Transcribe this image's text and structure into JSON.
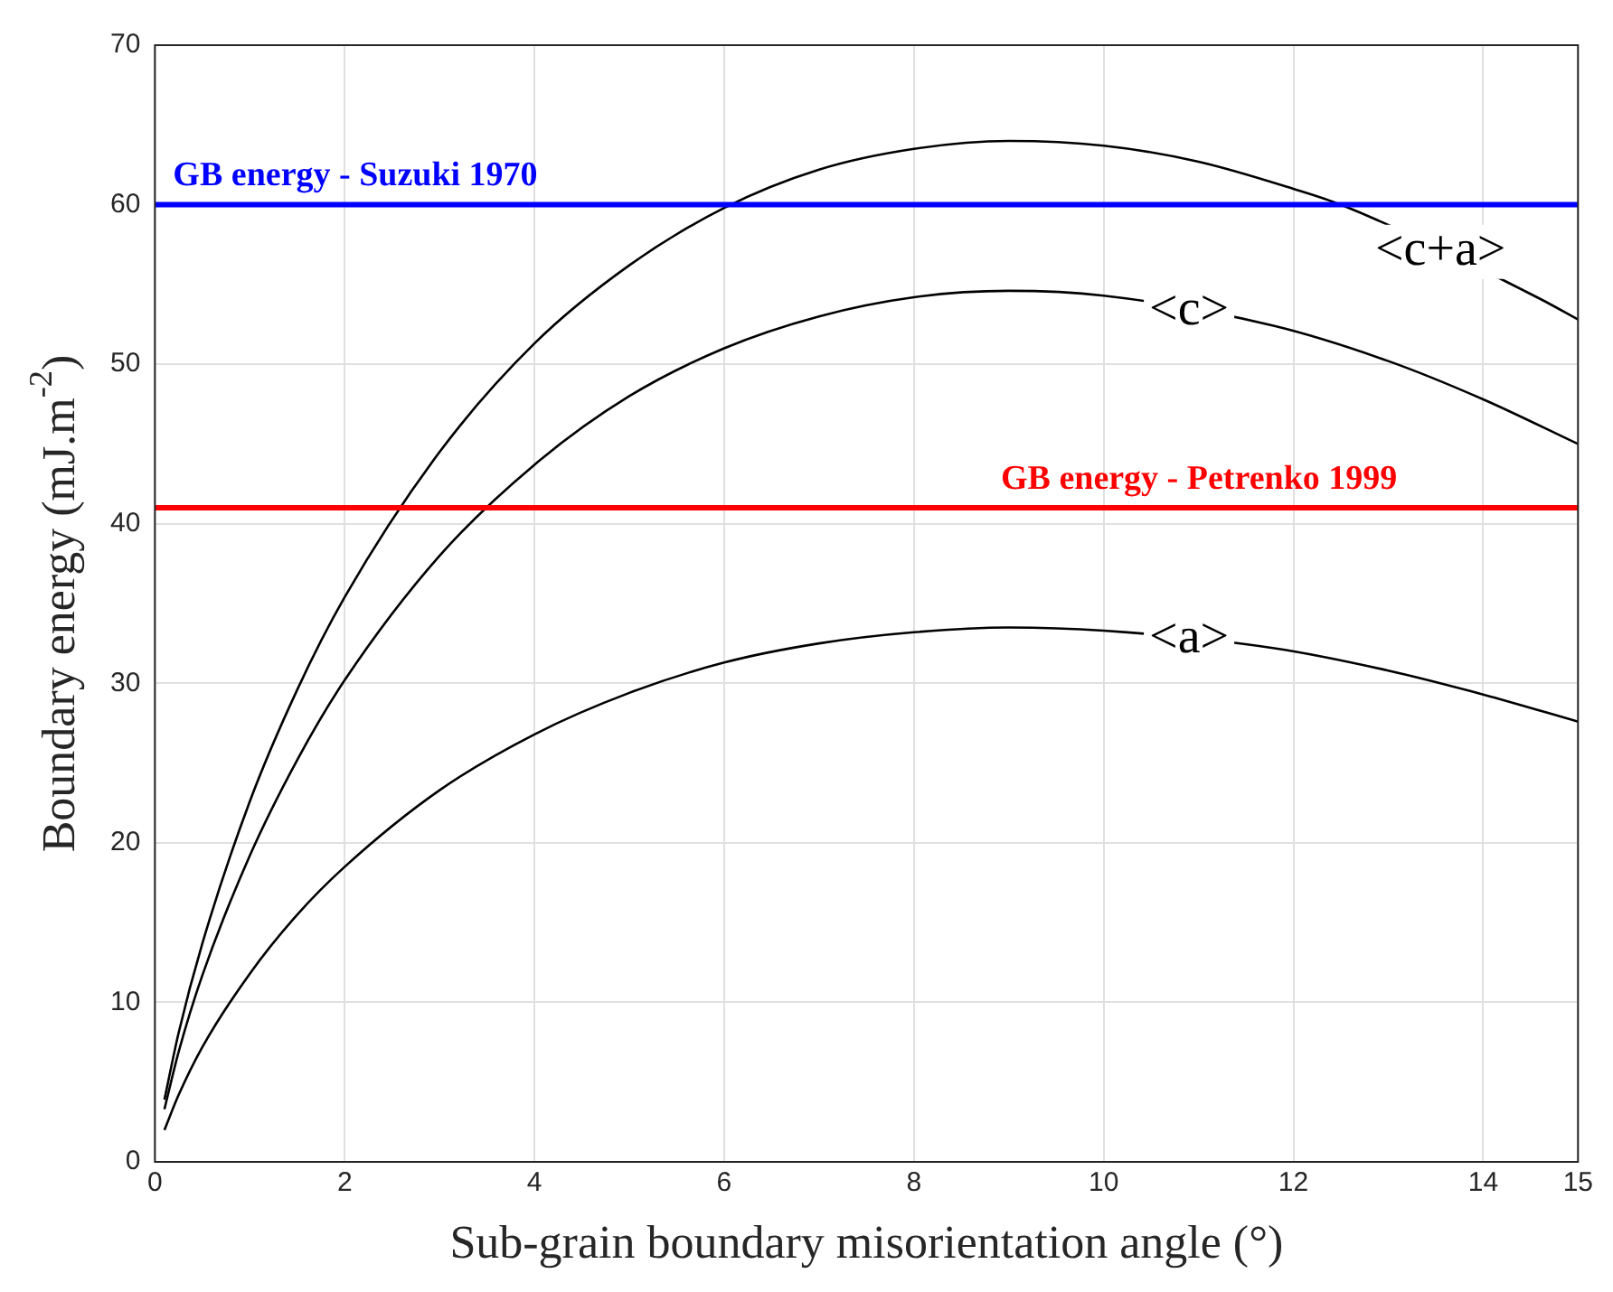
{
  "chart_data": {
    "type": "line",
    "xlabel": "Sub-grain boundary misorientation angle (°)",
    "ylabel": "Boundary energy (mJ.m$^{-2}$)",
    "series": [
      {
        "name": "<c+a>",
        "color": "#000000",
        "x": [
          0.1,
          0.25,
          0.5,
          1,
          1.5,
          2,
          3,
          4,
          5,
          6,
          7,
          8,
          9,
          10,
          11,
          12,
          12.5,
          14.6,
          15
        ],
        "values": [
          3.9,
          8.1,
          13.7,
          22.6,
          29.6,
          35.4,
          44.5,
          51.3,
          56.2,
          59.8,
          62.2,
          63.5,
          64.0,
          63.7,
          62.7,
          61.0,
          60.0,
          54.1,
          52.8
        ]
      },
      {
        "name": "<c>",
        "color": "#000000",
        "x": [
          0.1,
          0.25,
          0.5,
          1,
          1.5,
          2,
          3,
          4,
          5,
          6,
          7,
          8,
          9,
          10,
          11.8,
          13,
          14,
          15
        ],
        "values": [
          3.3,
          6.9,
          11.7,
          19.2,
          25.2,
          30.2,
          38.0,
          43.7,
          48.0,
          51.0,
          53.0,
          54.2,
          54.6,
          54.3,
          52.4,
          50.2,
          47.8,
          45.0
        ]
      },
      {
        "name": "<a>",
        "color": "#000000",
        "x": [
          0.1,
          0.25,
          0.5,
          1,
          1.5,
          2,
          3,
          4,
          5,
          6,
          7,
          8,
          9,
          10,
          11.8,
          13,
          14,
          15
        ],
        "values": [
          2.0,
          4.2,
          7.2,
          11.8,
          15.5,
          18.5,
          23.3,
          26.8,
          29.4,
          31.3,
          32.5,
          33.2,
          33.5,
          33.3,
          32.2,
          30.8,
          29.3,
          27.6
        ]
      }
    ],
    "xlim": [
      0,
      15
    ],
    "xticks": [
      0,
      2,
      4,
      6,
      8,
      10,
      12,
      14,
      15
    ],
    "ylim": [
      0,
      70
    ],
    "yticks": [
      0,
      10,
      20,
      30,
      40,
      50,
      60,
      70
    ],
    "ref_lines": [
      {
        "axis": "y",
        "value": 60,
        "label": "GB energy - Suzuki 1970",
        "color": "#0000ff"
      },
      {
        "axis": "y",
        "value": 41,
        "label": "GB energy - Petrenko 1999",
        "color": "#ff0000"
      }
    ],
    "grid": true,
    "legend": false,
    "marker": "none",
    "line_style": "solid"
  }
}
